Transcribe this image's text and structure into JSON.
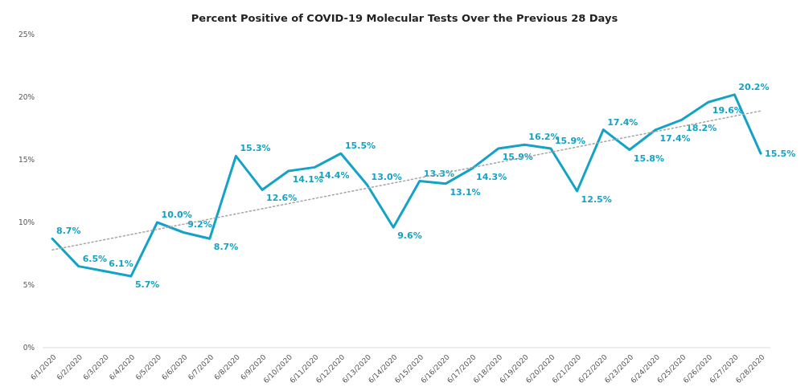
{
  "chart_data": {
    "type": "line",
    "title": "Percent Positive of COVID-19 Molecular Tests Over the Previous 28 Days",
    "categories": [
      "6/1/2020",
      "6/2/2020",
      "6/3/2020",
      "6/4/2020",
      "6/5/2020",
      "6/6/2020",
      "6/7/2020",
      "6/8/2020",
      "6/9/2020",
      "6/10/2020",
      "6/11/2020",
      "6/12/2020",
      "6/13/2020",
      "6/14/2020",
      "6/15/2020",
      "6/16/2020",
      "6/17/2020",
      "6/18/2020",
      "6/19/2020",
      "6/20/2020",
      "6/21/2020",
      "6/22/2020",
      "6/23/2020",
      "6/24/2020",
      "6/25/2020",
      "6/26/2020",
      "6/27/2020",
      "6/28/2020"
    ],
    "series": [
      {
        "color": "#14a3c7",
        "values": [
          8.7,
          6.5,
          6.1,
          5.7,
          10.0,
          9.2,
          8.7,
          15.3,
          12.6,
          14.1,
          14.4,
          15.5,
          13.0,
          9.6,
          13.3,
          13.1,
          14.3,
          15.9,
          16.2,
          15.9,
          12.5,
          17.4,
          15.8,
          17.4,
          18.2,
          19.6,
          20.2,
          15.5
        ],
        "value_labels": [
          "8.7%",
          "6.5%",
          "6.1%",
          "5.7%",
          "10.0%",
          "9.2%",
          "8.7%",
          "15.3%",
          "12.6%",
          "14.1%",
          "14.4%",
          "15.5%",
          "13.0%",
          "9.6%",
          "13.3%",
          "13.1%",
          "14.3%",
          "15.9%",
          "16.2%",
          "15.9%",
          "12.5%",
          "17.4%",
          "15.8%",
          "17.4%",
          "18.2%",
          "19.6%",
          "20.2%",
          "15.5%"
        ]
      },
      {
        "type": "line",
        "color": "#a6a6a6",
        "line_style": "dotted",
        "x": [
          "6/1/2020",
          "6/28/2020"
        ],
        "values": [
          7.8,
          18.9
        ]
      }
    ],
    "ylim": [
      0,
      25
    ],
    "yticks": [
      {
        "value": 0,
        "label": "0%"
      },
      {
        "value": 5,
        "label": "5%"
      },
      {
        "value": 10,
        "label": "10%"
      },
      {
        "value": 15,
        "label": "15%"
      },
      {
        "value": 20,
        "label": "20%"
      },
      {
        "value": 25,
        "label": "25%"
      }
    ],
    "grid": false,
    "marker": "none"
  }
}
